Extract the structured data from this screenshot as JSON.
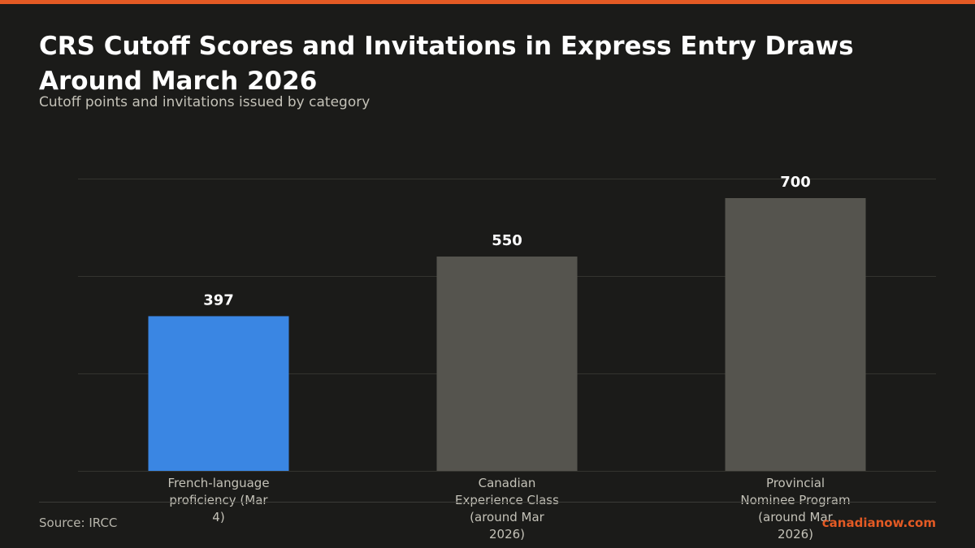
{
  "colors": {
    "accent": "#e35a24",
    "highlight_bar": "#3a86e3",
    "default_bar": "#55544e",
    "gridline": "#34342f",
    "tick_text": "#c4c2b8"
  },
  "header": {
    "title": "CRS Cutoff Scores and Invitations in Express Entry Draws Around March 2026",
    "subtitle": "Cutoff points and invitations issued by category"
  },
  "footer": {
    "source": "Source: IRCC",
    "brand": "canadianow.com"
  },
  "chart_data": {
    "type": "bar",
    "title": "CRS Cutoff Scores and Invitations in Express Entry Draws Around March 2026",
    "subtitle": "Cutoff points and invitations issued by category",
    "categories": [
      "French-language proficiency (Mar 4)",
      "Canadian Experience Class (around Mar 2026)",
      "Provincial Nominee Program (around Mar 2026)"
    ],
    "category_lines": [
      [
        "French-language",
        "proficiency (Mar",
        "4)"
      ],
      [
        "Canadian",
        "Experience Class",
        "(around Mar",
        "2026)"
      ],
      [
        "Provincial",
        "Nominee Program",
        "(around Mar",
        "2026)"
      ]
    ],
    "values": [
      397,
      550,
      700
    ],
    "data_labels": [
      "397",
      "550",
      "700"
    ],
    "highlight_index": 0,
    "xlabel": "",
    "ylabel": "",
    "ylim": [
      0,
      750
    ],
    "y_gridlines": [
      250,
      500,
      750
    ],
    "grid": true,
    "legend": "none"
  }
}
